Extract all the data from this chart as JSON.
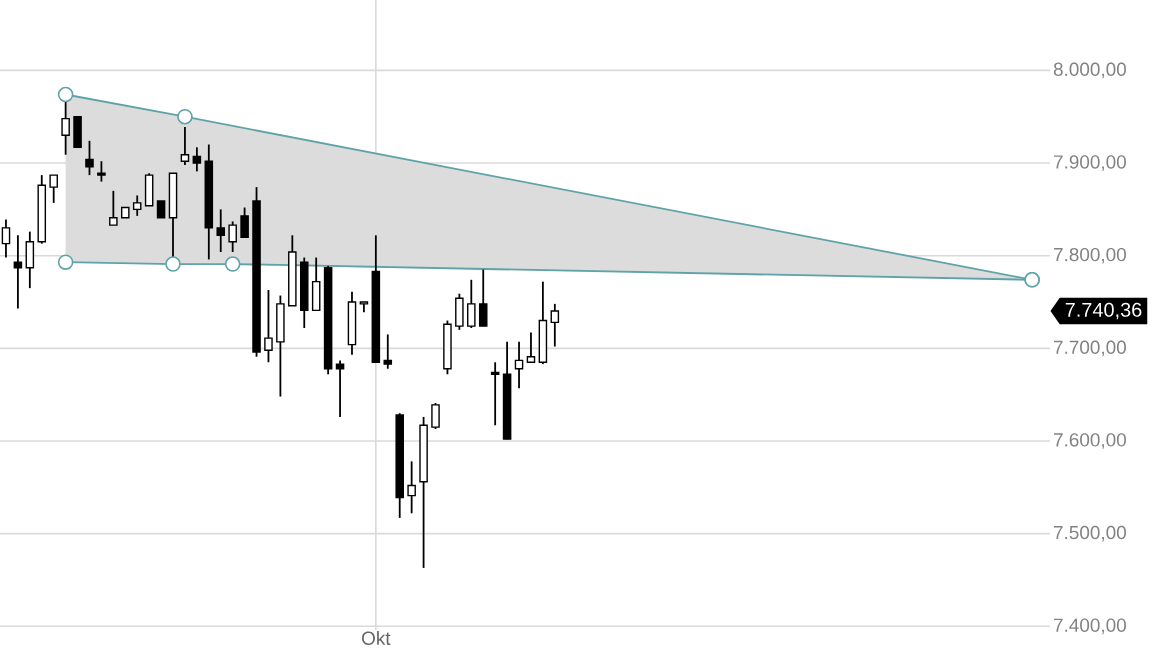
{
  "chart_data": {
    "type": "candlestick",
    "categories": [
      null,
      null,
      null,
      null,
      null,
      null,
      null,
      null,
      null,
      null,
      null,
      null,
      null,
      null,
      null,
      null,
      null,
      null,
      null,
      null,
      null,
      null,
      null,
      null,
      null,
      null,
      null,
      null,
      null,
      null,
      null,
      "Okt",
      null,
      null,
      null,
      null,
      null,
      null,
      null,
      null,
      null,
      null,
      null,
      null,
      null,
      null,
      null,
      null,
      null,
      null,
      null,
      null,
      null,
      null,
      null,
      null,
      null,
      null,
      null,
      null,
      null,
      null,
      null,
      null,
      null,
      null,
      null,
      null,
      null,
      null,
      null,
      null,
      null,
      null,
      null,
      null,
      null,
      null,
      null,
      null,
      null,
      null,
      null,
      null,
      null,
      null,
      null,
      null
    ],
    "ohlc": [
      [
        7813,
        7839,
        7798,
        7830
      ],
      [
        7793,
        7822,
        7743,
        7787
      ],
      [
        7787,
        7826,
        7765,
        7815
      ],
      [
        7815,
        7887,
        7813,
        7876
      ],
      [
        7874,
        7887,
        7857,
        7887
      ],
      [
        7930,
        7972,
        7909,
        7948
      ],
      [
        7950,
        7950,
        7917,
        7917
      ],
      [
        7904,
        7924,
        7887,
        7896
      ],
      [
        7889,
        7902,
        7880,
        7887
      ],
      [
        7833,
        7870,
        7833,
        7841
      ],
      [
        7841,
        7852,
        7841,
        7852
      ],
      [
        7850,
        7865,
        7843,
        7857
      ],
      [
        7854,
        7889,
        7854,
        7887
      ],
      [
        7859,
        7859,
        7841,
        7841
      ],
      [
        7841,
        7889,
        7798,
        7889
      ],
      [
        7902,
        7939,
        7898,
        7909
      ],
      [
        7907,
        7917,
        7891,
        7900
      ],
      [
        7902,
        7920,
        7796,
        7830
      ],
      [
        7830,
        7850,
        7804,
        7822
      ],
      [
        7815,
        7837,
        7804,
        7833
      ],
      [
        7843,
        7852,
        7820,
        7820
      ],
      [
        7859,
        7874,
        7691,
        7696
      ],
      [
        7698,
        7763,
        7685,
        7711
      ],
      [
        7707,
        7757,
        7648,
        7748
      ],
      [
        7746,
        7822,
        7746,
        7804
      ],
      [
        7793,
        7798,
        7722,
        7741
      ],
      [
        7741,
        7798,
        7741,
        7772
      ],
      [
        7787,
        7789,
        7672,
        7678
      ],
      [
        7683,
        7687,
        7626,
        7678
      ],
      [
        7704,
        7761,
        7693,
        7750
      ],
      [
        7748,
        7750,
        7739,
        7750
      ],
      [
        7783,
        7822,
        7685,
        7685
      ],
      [
        7687,
        7715,
        7678,
        7683
      ],
      [
        7628,
        7630,
        7517,
        7539
      ],
      [
        7541,
        7578,
        7522,
        7552
      ],
      [
        7556,
        7626,
        7463,
        7617
      ],
      [
        7615,
        7641,
        7613,
        7639
      ],
      [
        7678,
        7730,
        7672,
        7726
      ],
      [
        7724,
        7759,
        7720,
        7754
      ],
      [
        7724,
        7774,
        7722,
        7748
      ],
      [
        7748,
        7785,
        7724,
        7724
      ],
      [
        7674,
        7685,
        7617,
        7672
      ],
      [
        7672,
        7707,
        7602,
        7602
      ],
      [
        7678,
        7707,
        7657,
        7687
      ],
      [
        7685,
        7717,
        7685,
        7691
      ],
      [
        7685,
        7772,
        7683,
        7730
      ],
      [
        7728,
        7748,
        7702,
        7740.36
      ],
      null,
      null,
      null,
      null,
      null,
      null,
      null,
      null,
      null,
      null,
      null,
      null,
      null,
      null,
      null,
      null,
      null,
      null,
      null,
      null,
      null,
      null,
      null,
      null,
      null,
      null,
      null,
      null,
      null,
      null,
      null,
      null,
      null,
      null,
      null,
      null,
      null,
      null,
      null,
      null,
      null
    ],
    "series": [
      {
        "type": "line",
        "color": "#5fa3a8",
        "marker": "circle",
        "values": [
          null,
          null,
          null,
          null,
          null,
          7974,
          null,
          null,
          null,
          null,
          null,
          null,
          null,
          null,
          null,
          7950,
          null,
          null,
          null,
          null,
          null,
          null,
          null,
          null,
          null,
          null,
          null,
          null,
          null,
          null,
          null,
          null,
          null,
          null,
          null,
          null,
          null,
          null,
          null,
          null,
          null,
          null,
          null,
          null,
          null,
          null,
          null,
          null,
          null,
          null,
          null,
          null,
          null,
          null,
          null,
          null,
          null,
          null,
          null,
          null,
          null,
          null,
          null,
          null,
          null,
          null,
          null,
          null,
          null,
          null,
          null,
          null,
          null,
          null,
          null,
          null,
          null,
          null,
          null,
          null,
          null,
          null,
          null,
          null,
          null,
          null,
          7774,
          null
        ],
        "lower": [
          null,
          null,
          null,
          null,
          null,
          7793,
          null,
          null,
          null,
          null,
          null,
          null,
          null,
          null,
          null,
          7791,
          null,
          null,
          null,
          null,
          null,
          null,
          null,
          null,
          null,
          null,
          null,
          null,
          null,
          null,
          null,
          null,
          null,
          null,
          null,
          null,
          null,
          null,
          null,
          null,
          null,
          null,
          null,
          null,
          null,
          null,
          null,
          null,
          null,
          null,
          null,
          null,
          null,
          null,
          null,
          null,
          null,
          null,
          null,
          null,
          null,
          null,
          null,
          null,
          null,
          null,
          null,
          null,
          null,
          null,
          null,
          null,
          null,
          null,
          null,
          null,
          null,
          null,
          null,
          null,
          null,
          null,
          null,
          null,
          null,
          null,
          7774,
          null
        ],
        "upper": [
          null,
          null,
          null,
          null,
          null,
          7974,
          null,
          null,
          null,
          null,
          null,
          null,
          null,
          null,
          null,
          7950,
          null,
          null,
          null,
          null,
          null,
          null,
          null,
          null,
          null,
          null,
          null,
          null,
          null,
          null,
          null,
          null,
          null,
          null,
          null,
          null,
          null,
          null,
          null,
          null,
          null,
          null,
          null,
          null,
          null,
          null,
          null,
          null,
          null,
          null,
          null,
          null,
          null,
          null,
          null,
          null,
          null,
          null,
          null,
          null,
          null,
          null,
          null,
          null,
          null,
          null,
          null,
          null,
          null,
          null,
          null,
          null,
          null,
          null,
          null,
          null,
          null,
          null,
          null,
          null,
          null,
          null,
          null,
          null,
          null,
          null,
          7774,
          null
        ]
      },
      {
        "type": "line",
        "color": "#5fa3a8",
        "marker": "circle",
        "values": [
          null,
          null,
          null,
          null,
          null,
          7793,
          null,
          null,
          null,
          null,
          null,
          null,
          null,
          null,
          7791,
          null,
          null,
          null,
          null,
          7791,
          null,
          null,
          null,
          null,
          null,
          null,
          null,
          null,
          null,
          null,
          null,
          null,
          null,
          null,
          null,
          null,
          null,
          null,
          null,
          null,
          null,
          null,
          null,
          null,
          null,
          null,
          null,
          null,
          null,
          null,
          null,
          null,
          null,
          null,
          null,
          null,
          null,
          null,
          null,
          null,
          null,
          null,
          null,
          null,
          null,
          null,
          null,
          null,
          null,
          null,
          null,
          null,
          null,
          null,
          null,
          null,
          null,
          null,
          null,
          null,
          null,
          null,
          null,
          null,
          null,
          null,
          7774,
          null
        ]
      }
    ],
    "ylim": [
      7396,
      8076
    ],
    "yticks": [
      {
        "value": 7400,
        "label": "7.400,00"
      },
      {
        "value": 7500,
        "label": "7.500,00"
      },
      {
        "value": 7600,
        "label": "7.600,00"
      },
      {
        "value": 7700,
        "label": "7.700,00"
      },
      {
        "value": 7800,
        "label": "7.800,00"
      },
      {
        "value": 7900,
        "label": "7.900,00"
      },
      {
        "value": 8000,
        "label": "8.000,00"
      }
    ],
    "grid": true,
    "annotations": [
      "7.740,36"
    ]
  }
}
